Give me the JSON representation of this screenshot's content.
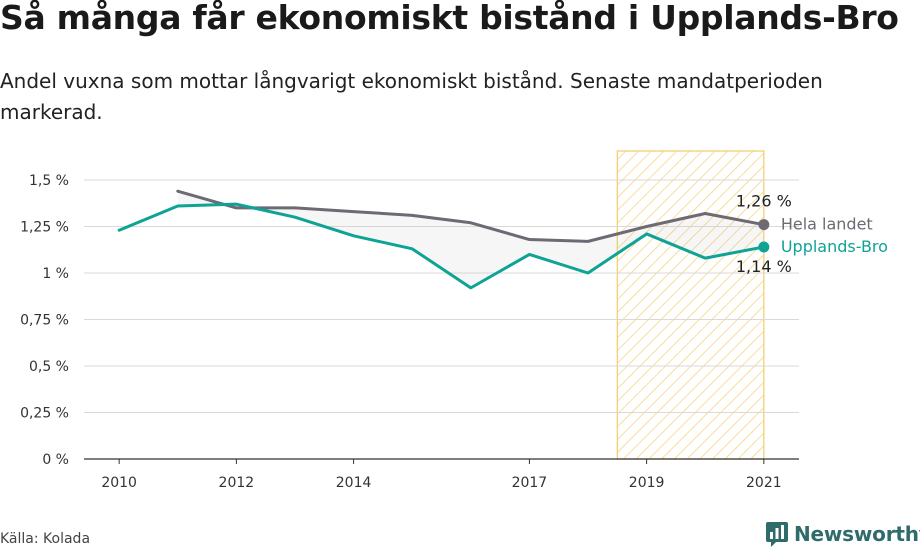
{
  "title": "Så många får ekonomiskt bistånd i Upplands-Bro",
  "subtitle": "Andel vuxna som mottar långvarigt ekonomiskt bistånd. Senaste mandatperioden markerad.",
  "source": "Källa: Kolada",
  "brand": {
    "name": "Newsworthy"
  },
  "colors": {
    "national": "#6d6a73",
    "municipality": "#0ea394",
    "highlight_stroke": "#f5cf72",
    "grid": "#d9d9d9"
  },
  "chart_data": {
    "type": "line",
    "x": [
      2010,
      2011,
      2012,
      2013,
      2014,
      2015,
      2016,
      2017,
      2018,
      2019,
      2020,
      2021
    ],
    "x_tick_labels": [
      "2010",
      "2012",
      "2014",
      "2017",
      "2019",
      "2021"
    ],
    "x_tick_values": [
      2010,
      2012,
      2014,
      2017,
      2019,
      2021
    ],
    "y_tick_labels": [
      "0 %",
      "0,25 %",
      "0,5 %",
      "0,75 %",
      "1 %",
      "1,25 %",
      "1,5 %"
    ],
    "y_tick_values": [
      0,
      0.25,
      0.5,
      0.75,
      1,
      1.25,
      1.5
    ],
    "ylim": [
      0,
      1.5
    ],
    "xlim": [
      2009.4,
      2021.6
    ],
    "highlight_period": [
      2018.5,
      2021
    ],
    "series": [
      {
        "name": "Hela landet",
        "values": [
          null,
          1.44,
          1.35,
          1.35,
          1.33,
          1.31,
          1.27,
          1.18,
          1.17,
          1.25,
          1.32,
          1.26
        ],
        "end_label": "1,26 %"
      },
      {
        "name": "Upplands-Bro",
        "values": [
          1.23,
          1.36,
          1.37,
          1.3,
          1.2,
          1.13,
          0.92,
          1.1,
          1.0,
          1.21,
          1.08,
          1.14
        ],
        "end_label": "1,14 %"
      }
    ],
    "grid": true,
    "legend": "end-of-line labels"
  }
}
